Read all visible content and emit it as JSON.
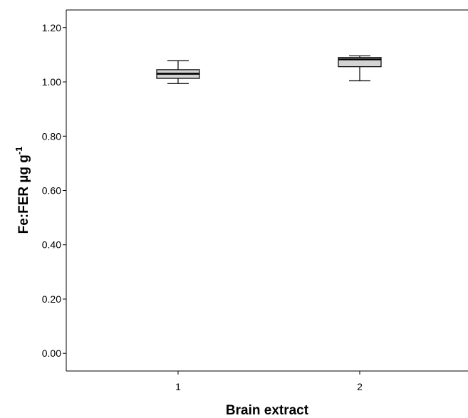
{
  "chart_data": {
    "type": "box",
    "title": "",
    "xlabel": "Brain extract",
    "ylabel": {
      "main": "Fe:FER µg g",
      "superscript": "-1"
    },
    "ylim": [
      -0.065,
      1.265
    ],
    "yticks": [
      "0.00",
      "0.20",
      "0.40",
      "0.60",
      "0.80",
      "1.00",
      "1.20"
    ],
    "categories": [
      "1",
      "2"
    ],
    "boxes": [
      {
        "category": "1",
        "whisker_low": 0.994,
        "q1": 1.013,
        "median": 1.03,
        "q3": 1.045,
        "whisker_high": 1.078
      },
      {
        "category": "2",
        "whisker_low": 1.004,
        "q1": 1.056,
        "median": 1.083,
        "q3": 1.09,
        "whisker_high": 1.096
      }
    ],
    "box_fill": "#d3d3d3",
    "grid": false
  }
}
